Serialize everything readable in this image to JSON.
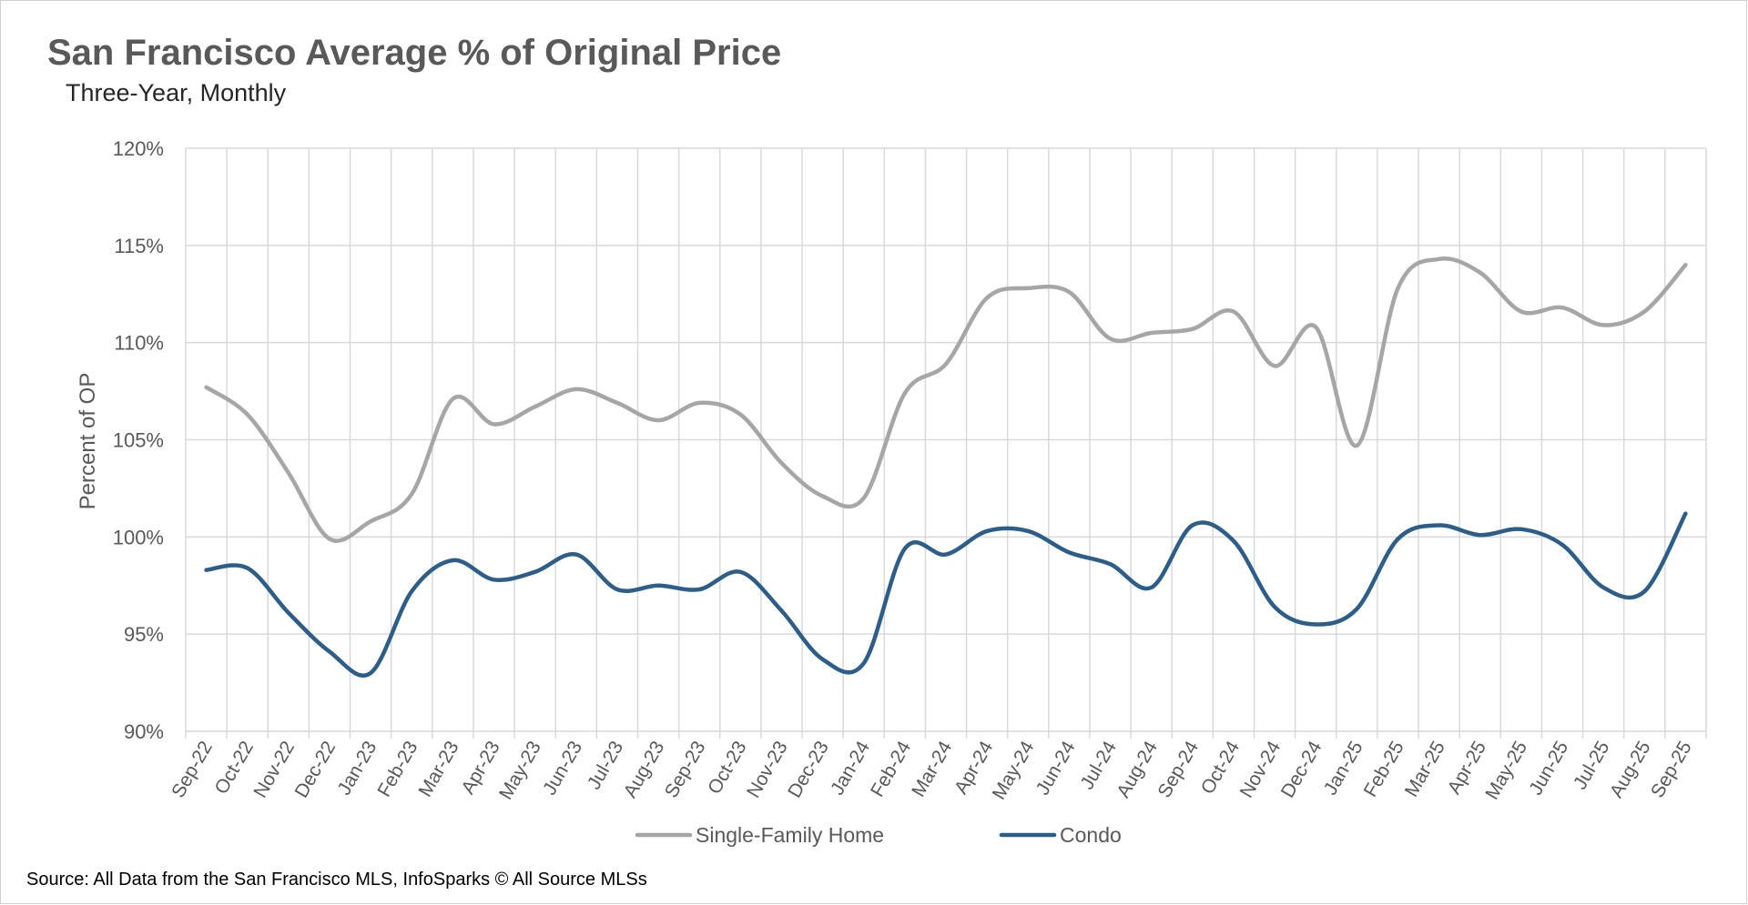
{
  "chart_data": {
    "type": "line",
    "title": "San Francisco Average % of Original Price",
    "subtitle": "Three-Year, Monthly",
    "xlabel": "",
    "ylabel": "Percent of OP",
    "ylim": [
      90,
      120
    ],
    "yticks": [
      "90%",
      "95%",
      "100%",
      "105%",
      "110%",
      "115%",
      "120%"
    ],
    "grid": true,
    "legend_position": "bottom",
    "categories": [
      "Sep-22",
      "Oct-22",
      "Nov-22",
      "Dec-22",
      "Jan-23",
      "Feb-23",
      "Mar-23",
      "Apr-23",
      "May-23",
      "Jun-23",
      "Jul-23",
      "Aug-23",
      "Sep-23",
      "Oct-23",
      "Nov-23",
      "Dec-23",
      "Jan-24",
      "Feb-24",
      "Mar-24",
      "Apr-24",
      "May-24",
      "Jun-24",
      "Jul-24",
      "Aug-24",
      "Sep-24",
      "Oct-24",
      "Nov-24",
      "Dec-24",
      "Jan-25",
      "Feb-25",
      "Mar-25",
      "Apr-25",
      "May-25",
      "Jun-25",
      "Jul-25",
      "Aug-25",
      "Sep-25"
    ],
    "series": [
      {
        "name": "Single-Family Home",
        "color": "#a6a6a6",
        "values": [
          107.7,
          106.3,
          103.3,
          99.9,
          100.8,
          102.2,
          107.1,
          105.8,
          106.7,
          107.6,
          106.9,
          106.0,
          106.9,
          106.3,
          103.8,
          102.1,
          102.0,
          107.4,
          108.9,
          112.3,
          112.8,
          112.6,
          110.2,
          110.5,
          110.7,
          111.6,
          108.8,
          110.8,
          104.7,
          112.8,
          114.3,
          113.6,
          111.6,
          111.8,
          110.9,
          111.6,
          114.0
        ]
      },
      {
        "name": "Condo",
        "color": "#2d5e8a",
        "values": [
          98.3,
          98.4,
          96.1,
          94.1,
          93.0,
          97.2,
          98.8,
          97.8,
          98.2,
          99.1,
          97.3,
          97.5,
          97.3,
          98.2,
          96.2,
          93.7,
          93.5,
          99.4,
          99.1,
          100.3,
          100.3,
          99.2,
          98.6,
          97.4,
          100.6,
          99.8,
          96.4,
          95.5,
          96.3,
          99.9,
          100.6,
          100.1,
          100.4,
          99.6,
          97.4,
          97.2,
          101.2
        ]
      }
    ]
  },
  "source": "Source: All Data from the San Francisco MLS, InfoSparks © All Source MLSs"
}
